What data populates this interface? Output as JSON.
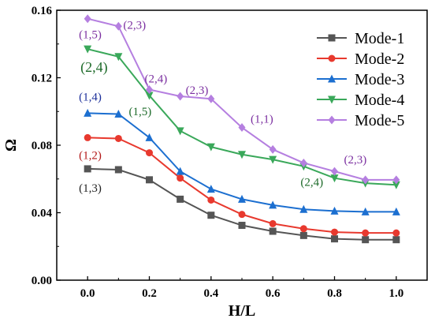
{
  "chart_data": {
    "type": "line",
    "title": "",
    "xlabel": "H/L",
    "ylabel": "Ω",
    "xlim": [
      -0.1,
      1.1
    ],
    "ylim": [
      0.0,
      0.16
    ],
    "x": [
      0.0,
      0.1,
      0.2,
      0.3,
      0.4,
      0.5,
      0.6,
      0.7,
      0.8,
      0.9,
      1.0
    ],
    "x_ticks": [
      "0.0",
      "0.2",
      "0.4",
      "0.6",
      "0.8",
      "1.0"
    ],
    "y_ticks": [
      "0.00",
      "0.04",
      "0.08",
      "0.12",
      "0.16"
    ],
    "grid": false,
    "legend_position": "top-right",
    "series": [
      {
        "name": "Mode-1",
        "color": "#555555",
        "marker": "square",
        "values": [
          0.066,
          0.0655,
          0.0595,
          0.048,
          0.0385,
          0.0325,
          0.029,
          0.0265,
          0.0245,
          0.024,
          0.024
        ]
      },
      {
        "name": "Mode-2",
        "color": "#e8392e",
        "marker": "circle",
        "values": [
          0.0845,
          0.084,
          0.0755,
          0.0605,
          0.0475,
          0.039,
          0.0335,
          0.0305,
          0.0285,
          0.028,
          0.028
        ]
      },
      {
        "name": "Mode-3",
        "color": "#1c6fd0",
        "marker": "triangle-up",
        "values": [
          0.099,
          0.0985,
          0.0845,
          0.0645,
          0.054,
          0.048,
          0.0445,
          0.042,
          0.041,
          0.0405,
          0.0405
        ]
      },
      {
        "name": "Mode-4",
        "color": "#3aa85a",
        "marker": "triangle-down",
        "values": [
          0.137,
          0.1325,
          0.1095,
          0.0885,
          0.079,
          0.0745,
          0.0715,
          0.0675,
          0.0605,
          0.0575,
          0.0565
        ]
      },
      {
        "name": "Mode-5",
        "color": "#b57fe0",
        "marker": "diamond",
        "values": [
          0.155,
          0.1505,
          0.113,
          0.109,
          0.1075,
          0.0905,
          0.0775,
          0.0695,
          0.0645,
          0.0595,
          0.0595
        ]
      }
    ],
    "annotations": [
      {
        "text": "(1,5)",
        "x": 0.0,
        "y": 0.155,
        "color": "#7b2fa0"
      },
      {
        "text": "(2,3)",
        "x": 0.1,
        "y": 0.1505,
        "color": "#7b2fa0"
      },
      {
        "text": "(2,4)",
        "x": 0.2,
        "y": 0.113,
        "color": "#7b2fa0"
      },
      {
        "text": "(2,3)",
        "x": 0.3,
        "y": 0.109,
        "color": "#7b2fa0"
      },
      {
        "text": "(1,1)",
        "x": 0.5,
        "y": 0.0905,
        "color": "#7b2fa0"
      },
      {
        "text": "(2,3)",
        "x": 0.8,
        "y": 0.0645,
        "color": "#7b2fa0"
      },
      {
        "text": "(2,4)",
        "x": 0.0,
        "y": 0.137,
        "color": "#1e6b2a"
      },
      {
        "text": "(1,5)",
        "x": 0.2,
        "y": 0.1095,
        "color": "#1e6b2a"
      },
      {
        "text": "(2,4)",
        "x": 0.7,
        "y": 0.0675,
        "color": "#1e6b2a"
      },
      {
        "text": "(1,4)",
        "x": 0.0,
        "y": 0.099,
        "color": "#1c2f9a"
      },
      {
        "text": "(1,2)",
        "x": 0.0,
        "y": 0.0845,
        "color": "#b21818"
      },
      {
        "text": "(1,3)",
        "x": 0.0,
        "y": 0.066,
        "color": "#222222"
      }
    ]
  }
}
